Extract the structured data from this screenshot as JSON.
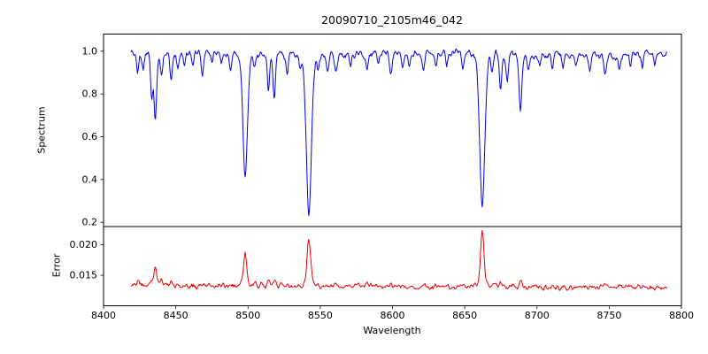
{
  "chart_data": {
    "type": "line",
    "title": "20090710_2105m46_042",
    "xlabel": "Wavelength",
    "xlim": [
      8400,
      8800
    ],
    "x_ticks": [
      8400,
      8450,
      8500,
      8550,
      8600,
      8650,
      8700,
      8750,
      8800
    ],
    "sample_step": 0.5,
    "grid": false,
    "legend": "none",
    "panels": [
      {
        "name": "spectrum",
        "ylabel": "Spectrum",
        "color": "#0000ee",
        "ylim": [
          0.18,
          1.08
        ],
        "yticks": [
          0.2,
          0.4,
          0.6,
          0.8,
          1.0
        ],
        "ytick_decimals": 1,
        "x_start": 8419,
        "x_end": 8790,
        "continuum_level": 0.988,
        "noise_scale": 0.05,
        "absorption_lines": [
          {
            "center": 8423.5,
            "depth": 0.1,
            "sigma": 0.8
          },
          {
            "center": 8427.5,
            "depth": 0.07,
            "sigma": 0.7
          },
          {
            "center": 8433.3,
            "depth": 0.2,
            "sigma": 0.8
          },
          {
            "center": 8435.8,
            "depth": 0.33,
            "sigma": 0.9
          },
          {
            "center": 8440.2,
            "depth": 0.11,
            "sigma": 0.8
          },
          {
            "center": 8446.8,
            "depth": 0.12,
            "sigma": 0.9
          },
          {
            "center": 8451.5,
            "depth": 0.08,
            "sigma": 0.8
          },
          {
            "center": 8456.0,
            "depth": 0.05,
            "sigma": 0.7
          },
          {
            "center": 8462.0,
            "depth": 0.06,
            "sigma": 0.7
          },
          {
            "center": 8468.3,
            "depth": 0.1,
            "sigma": 0.9
          },
          {
            "center": 8475.0,
            "depth": 0.05,
            "sigma": 0.7
          },
          {
            "center": 8481.5,
            "depth": 0.06,
            "sigma": 0.7
          },
          {
            "center": 8488.0,
            "depth": 0.07,
            "sigma": 0.7
          },
          {
            "center": 8498.0,
            "depth": 0.57,
            "sigma": 1.6
          },
          {
            "center": 8504.5,
            "depth": 0.06,
            "sigma": 0.7
          },
          {
            "center": 8514.1,
            "depth": 0.16,
            "sigma": 0.8
          },
          {
            "center": 8518.1,
            "depth": 0.2,
            "sigma": 0.9
          },
          {
            "center": 8527.0,
            "depth": 0.09,
            "sigma": 0.8
          },
          {
            "center": 8536.0,
            "depth": 0.06,
            "sigma": 0.7
          },
          {
            "center": 8542.1,
            "depth": 0.75,
            "sigma": 1.8
          },
          {
            "center": 8548.5,
            "depth": 0.07,
            "sigma": 0.8
          },
          {
            "center": 8555.0,
            "depth": 0.06,
            "sigma": 0.7
          },
          {
            "center": 8560.8,
            "depth": 0.08,
            "sigma": 0.8
          },
          {
            "center": 8571.0,
            "depth": 0.05,
            "sigma": 0.7
          },
          {
            "center": 8582.3,
            "depth": 0.07,
            "sigma": 0.8
          },
          {
            "center": 8590.0,
            "depth": 0.05,
            "sigma": 0.7
          },
          {
            "center": 8598.8,
            "depth": 0.1,
            "sigma": 0.9
          },
          {
            "center": 8607.0,
            "depth": 0.06,
            "sigma": 0.7
          },
          {
            "center": 8611.5,
            "depth": 0.07,
            "sigma": 0.7
          },
          {
            "center": 8621.3,
            "depth": 0.09,
            "sigma": 0.9
          },
          {
            "center": 8630.0,
            "depth": 0.05,
            "sigma": 0.7
          },
          {
            "center": 8637.5,
            "depth": 0.05,
            "sigma": 0.7
          },
          {
            "center": 8648.5,
            "depth": 0.07,
            "sigma": 0.8
          },
          {
            "center": 8662.1,
            "depth": 0.73,
            "sigma": 1.8
          },
          {
            "center": 8669.0,
            "depth": 0.08,
            "sigma": 0.8
          },
          {
            "center": 8674.8,
            "depth": 0.17,
            "sigma": 0.9
          },
          {
            "center": 8679.5,
            "depth": 0.12,
            "sigma": 0.8
          },
          {
            "center": 8688.6,
            "depth": 0.27,
            "sigma": 1.0
          },
          {
            "center": 8694.0,
            "depth": 0.07,
            "sigma": 0.8
          },
          {
            "center": 8702.0,
            "depth": 0.05,
            "sigma": 0.7
          },
          {
            "center": 8710.5,
            "depth": 0.06,
            "sigma": 0.7
          },
          {
            "center": 8718.0,
            "depth": 0.05,
            "sigma": 0.7
          },
          {
            "center": 8727.0,
            "depth": 0.05,
            "sigma": 0.7
          },
          {
            "center": 8736.5,
            "depth": 0.08,
            "sigma": 0.8
          },
          {
            "center": 8747.2,
            "depth": 0.09,
            "sigma": 0.9
          },
          {
            "center": 8757.0,
            "depth": 0.07,
            "sigma": 0.8
          },
          {
            "center": 8764.5,
            "depth": 0.05,
            "sigma": 0.7
          },
          {
            "center": 8773.0,
            "depth": 0.06,
            "sigma": 0.8
          },
          {
            "center": 8781.5,
            "depth": 0.05,
            "sigma": 0.7
          }
        ]
      },
      {
        "name": "error",
        "ylabel": "Error",
        "color": "#ee0000",
        "ylim": [
          0.01,
          0.023
        ],
        "yticks": [
          0.015,
          0.02
        ],
        "ytick_decimals": 3,
        "x_start": 8419,
        "x_end": 8790,
        "baseline_start": 0.0134,
        "baseline_end": 0.013,
        "noise_scale": 0.0013,
        "spikes": [
          {
            "center": 8423.5,
            "height": 0.0005,
            "sigma": 0.8
          },
          {
            "center": 8433.3,
            "height": 0.0007,
            "sigma": 0.8
          },
          {
            "center": 8435.8,
            "height": 0.003,
            "sigma": 0.9
          },
          {
            "center": 8440.2,
            "height": 0.0007,
            "sigma": 0.8
          },
          {
            "center": 8446.8,
            "height": 0.0006,
            "sigma": 0.8
          },
          {
            "center": 8468.3,
            "height": 0.0005,
            "sigma": 0.8
          },
          {
            "center": 8498.0,
            "height": 0.0051,
            "sigma": 1.2
          },
          {
            "center": 8514.1,
            "height": 0.0008,
            "sigma": 0.8
          },
          {
            "center": 8518.1,
            "height": 0.0009,
            "sigma": 0.8
          },
          {
            "center": 8542.1,
            "height": 0.0077,
            "sigma": 1.3
          },
          {
            "center": 8560.8,
            "height": 0.0005,
            "sigma": 0.8
          },
          {
            "center": 8582.3,
            "height": 0.0006,
            "sigma": 0.8
          },
          {
            "center": 8598.8,
            "height": 0.0005,
            "sigma": 0.8
          },
          {
            "center": 8621.3,
            "height": 0.0004,
            "sigma": 0.8
          },
          {
            "center": 8662.1,
            "height": 0.009,
            "sigma": 1.2
          },
          {
            "center": 8674.8,
            "height": 0.0007,
            "sigma": 0.8
          },
          {
            "center": 8688.6,
            "height": 0.0013,
            "sigma": 0.9
          },
          {
            "center": 8710.5,
            "height": 0.0004,
            "sigma": 0.8
          },
          {
            "center": 8747.2,
            "height": 0.0006,
            "sigma": 0.8
          },
          {
            "center": 8770.0,
            "height": 0.0004,
            "sigma": 0.8
          }
        ]
      }
    ]
  }
}
